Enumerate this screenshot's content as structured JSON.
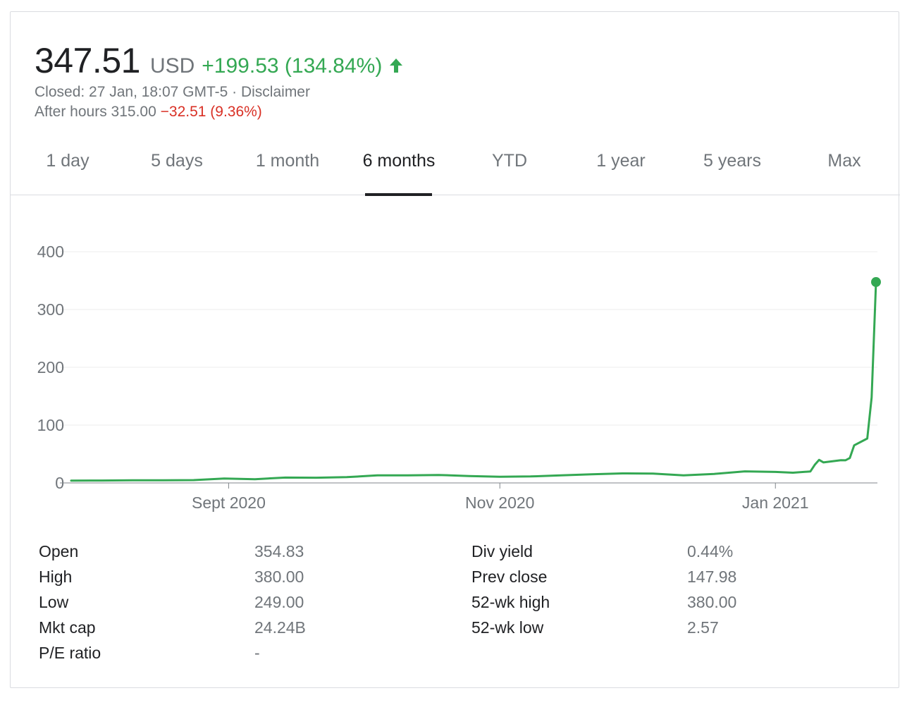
{
  "quote": {
    "price": "347.51",
    "currency": "USD",
    "change": "+199.53 (134.84%)",
    "closed_text": "Closed: 27 Jan, 18:07 GMT-5 · Disclaimer",
    "after_hours_label": "After hours 315.00",
    "after_hours_change": "−32.51 (9.36%)",
    "up_color": "#34a853",
    "down_color": "#d93025"
  },
  "tabs": [
    {
      "label": "1 day"
    },
    {
      "label": "5 days"
    },
    {
      "label": "1 month"
    },
    {
      "label": "6 months"
    },
    {
      "label": "YTD"
    },
    {
      "label": "1 year"
    },
    {
      "label": "5 years"
    },
    {
      "label": "Max"
    }
  ],
  "active_tab": "6 months",
  "chart_data": {
    "type": "line",
    "title": "",
    "xlabel": "",
    "ylabel": "",
    "ylim": [
      0,
      400
    ],
    "yticks": [
      0,
      100,
      200,
      300,
      400
    ],
    "xticks": [
      {
        "label": "Sept 2020",
        "date": "2020-09-01"
      },
      {
        "label": "Nov 2020",
        "date": "2020-11-02"
      },
      {
        "label": "Jan 2021",
        "date": "2021-01-04"
      }
    ],
    "grid": true,
    "line_color": "#34a853",
    "series": [
      {
        "name": "",
        "x": [
          "2020-07-27",
          "2020-08-03",
          "2020-08-10",
          "2020-08-17",
          "2020-08-24",
          "2020-08-31",
          "2020-09-07",
          "2020-09-14",
          "2020-09-21",
          "2020-09-28",
          "2020-10-05",
          "2020-10-12",
          "2020-10-19",
          "2020-10-26",
          "2020-11-02",
          "2020-11-09",
          "2020-11-16",
          "2020-11-23",
          "2020-11-30",
          "2020-12-07",
          "2020-12-14",
          "2020-12-21",
          "2020-12-28",
          "2021-01-04",
          "2021-01-08",
          "2021-01-12",
          "2021-01-13",
          "2021-01-14",
          "2021-01-15",
          "2021-01-19",
          "2021-01-20",
          "2021-01-21",
          "2021-01-22",
          "2021-01-25",
          "2021-01-26",
          "2021-01-27"
        ],
        "values": [
          4.0,
          4.2,
          4.6,
          4.6,
          4.9,
          7.6,
          6.5,
          9.3,
          9.0,
          10.0,
          13.0,
          13.0,
          13.8,
          12.0,
          10.6,
          11.2,
          13.0,
          15.0,
          16.5,
          16.1,
          13.0,
          15.6,
          20.0,
          19.0,
          17.7,
          19.9,
          31.4,
          39.9,
          35.5,
          39.4,
          39.1,
          43.0,
          65.0,
          76.8,
          147.98,
          347.51
        ]
      }
    ],
    "last_point_marker": true
  },
  "stats": {
    "left": [
      {
        "label": "Open",
        "value": "354.83"
      },
      {
        "label": "High",
        "value": "380.00"
      },
      {
        "label": "Low",
        "value": "249.00"
      },
      {
        "label": "Mkt cap",
        "value": "24.24B"
      },
      {
        "label": "P/E ratio",
        "value": "-"
      }
    ],
    "right": [
      {
        "label": "Div yield",
        "value": "0.44%"
      },
      {
        "label": "Prev close",
        "value": "147.98"
      },
      {
        "label": "52-wk high",
        "value": "380.00"
      },
      {
        "label": "52-wk low",
        "value": "2.57"
      }
    ]
  }
}
